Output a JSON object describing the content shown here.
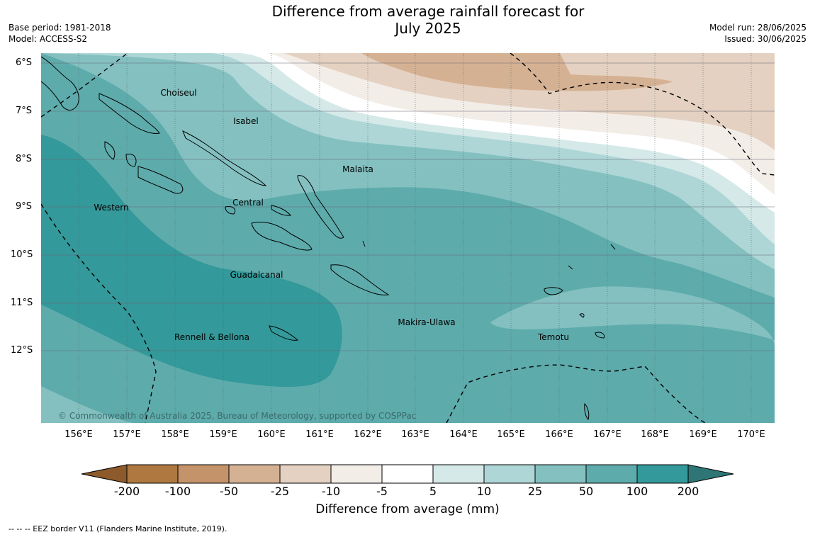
{
  "title_line1": "Difference from average rainfall forecast for",
  "title_line2": "July 2025",
  "base_period": "Base period: 1981-2018",
  "model": "Model: ACCESS-S2",
  "model_run": "Model run: 28/06/2025",
  "issued": "Issued: 30/06/2025",
  "lat_labels": [
    "6°S",
    "7°S",
    "8°S",
    "9°S",
    "10°S",
    "11°S",
    "12°S"
  ],
  "lon_labels": [
    "156°E",
    "157°E",
    "158°E",
    "159°E",
    "160°E",
    "161°E",
    "162°E",
    "163°E",
    "164°E",
    "165°E",
    "166°E",
    "167°E",
    "168°E",
    "169°E",
    "170°E"
  ],
  "regions": [
    "Choiseul",
    "Isabel",
    "Malaita",
    "Central",
    "Western",
    "Guadalcanal",
    "Makira-Ulawa",
    "Temotu",
    "Rennell & Bellona"
  ],
  "copyright": "© Commonwealth of Australia 2025, Bureau of Meteorology, supported by COSPPac",
  "legend": {
    "ticks": [
      "-200",
      "-100",
      "-50",
      "-25",
      "-10",
      "-5",
      "5",
      "10",
      "25",
      "50",
      "100",
      "200"
    ],
    "colors": [
      "#8d5a2b",
      "#ae7840",
      "#c4936a",
      "#d5b193",
      "#e4d1c1",
      "#f3ede8",
      "#ffffff",
      "#d5e9e8",
      "#aed6d6",
      "#84c0c0",
      "#5eabac",
      "#33999a",
      "#2e7575"
    ],
    "title": "Difference from average (mm)"
  },
  "footnote": "--  --  -- EEZ border V11 (Flanders Marine Institute, 2019)."
}
